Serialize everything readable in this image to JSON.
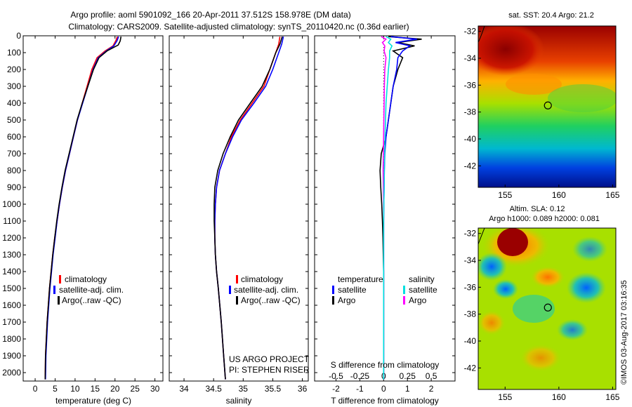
{
  "header": {
    "line1": "Argo profile: aoml 5901092_166 20-Apr-2011 37.512S 158.978E (DM data)",
    "line2": "Climatology: CARS2009. Satellite-adjusted climatology: synTS_20110420.nc (0.36d earlier)"
  },
  "colors": {
    "climatology": "#ff0000",
    "satellite": "#0000ff",
    "argo": "#000000",
    "argo_salinity_diff": "#ff00ff",
    "satellite_salinity_diff": "#00e0e0"
  },
  "chart_data": [
    {
      "type": "line",
      "name": "temperature-profile",
      "xlabel": "temperature (deg C)",
      "ylabel": "",
      "xlim": [
        -3,
        32
      ],
      "ylim": [
        2050,
        0
      ],
      "xticks": [
        "0",
        "5",
        "10",
        "15",
        "20",
        "25",
        "30"
      ],
      "xtick_values": [
        0,
        5,
        10,
        15,
        20,
        25,
        30
      ],
      "yticks": [
        "0",
        "100",
        "200",
        "300",
        "400",
        "500",
        "600",
        "700",
        "800",
        "900",
        "1000",
        "1100",
        "1200",
        "1300",
        "1400",
        "1500",
        "1600",
        "1700",
        "1800",
        "1900",
        "2000"
      ],
      "ytick_values": [
        0,
        100,
        200,
        300,
        400,
        500,
        600,
        700,
        800,
        900,
        1000,
        1100,
        1200,
        1300,
        1400,
        1500,
        1600,
        1700,
        1800,
        1900,
        2000
      ],
      "legend": [
        "climatology",
        "satellite-adj. clim.",
        "Argo(..raw -QC)"
      ],
      "series": [
        {
          "name": "climatology",
          "color": "#ff0000",
          "x": [
            20.6,
            20.2,
            19.5,
            17.5,
            15.5,
            14.2,
            13.0,
            11.8,
            10.6,
            9.6,
            8.6,
            7.6,
            6.8,
            6.1,
            5.5,
            4.9,
            4.4,
            3.6,
            3.0,
            2.6,
            2.5
          ],
          "y": [
            5,
            30,
            60,
            90,
            130,
            200,
            300,
            400,
            500,
            600,
            700,
            800,
            900,
            1000,
            1100,
            1200,
            1300,
            1500,
            1700,
            1900,
            2040
          ]
        },
        {
          "name": "satellite-adj. clim.",
          "color": "#0000ff",
          "x": [
            20.9,
            20.5,
            19.7,
            17.8,
            15.8,
            14.5,
            13.2,
            11.9,
            10.6,
            9.6,
            8.6,
            7.6,
            6.8,
            6.1,
            5.5,
            5.0,
            4.5,
            3.7,
            3.1,
            2.7,
            2.6
          ],
          "y": [
            5,
            30,
            60,
            90,
            130,
            200,
            300,
            400,
            500,
            600,
            700,
            800,
            900,
            1000,
            1100,
            1200,
            1300,
            1500,
            1700,
            1900,
            2040
          ]
        },
        {
          "name": "Argo(..raw -QC)",
          "color": "#000000",
          "x": [
            21.5,
            21.3,
            20.8,
            18.0,
            16.0,
            14.6,
            13.2,
            11.8,
            10.5,
            9.5,
            8.5,
            7.5,
            6.7,
            6.0,
            5.4,
            4.9,
            4.4,
            3.6,
            3.0,
            2.6,
            2.5
          ],
          "y": [
            5,
            30,
            55,
            90,
            130,
            200,
            300,
            400,
            500,
            600,
            700,
            800,
            900,
            1000,
            1100,
            1200,
            1300,
            1500,
            1700,
            1900,
            2040
          ]
        }
      ]
    },
    {
      "type": "line",
      "name": "salinity-profile",
      "xlabel": "salinity",
      "xlim": [
        33.75,
        36.1
      ],
      "ylim": [
        2050,
        0
      ],
      "xticks": [
        "34",
        "34.5",
        "35",
        "35.5",
        "36"
      ],
      "xtick_values": [
        34,
        34.5,
        35,
        35.5,
        36
      ],
      "legend": [
        "climatology",
        "satellite-adj. clim.",
        "Argo(..raw -QC)"
      ],
      "annotation": [
        "US ARGO PROJECT",
        "PI: STEPHEN RISER"
      ],
      "series": [
        {
          "name": "climatology",
          "color": "#ff0000",
          "x": [
            35.62,
            35.6,
            35.55,
            35.45,
            35.35,
            35.15,
            34.95,
            34.8,
            34.7,
            34.6,
            34.55,
            34.53,
            34.52,
            34.52,
            34.53,
            34.55,
            34.58,
            34.63,
            34.67,
            34.7
          ],
          "y": [
            5,
            50,
            100,
            200,
            300,
            400,
            500,
            600,
            700,
            800,
            900,
            1000,
            1100,
            1200,
            1300,
            1400,
            1500,
            1700,
            1900,
            2040
          ]
        },
        {
          "name": "satellite-adj. clim.",
          "color": "#0000ff",
          "x": [
            35.68,
            35.65,
            35.6,
            35.5,
            35.38,
            35.18,
            34.97,
            34.82,
            34.7,
            34.6,
            34.55,
            34.53,
            34.52,
            34.52,
            34.53,
            34.55,
            34.58,
            34.63,
            34.67,
            34.7
          ],
          "y": [
            5,
            50,
            100,
            200,
            300,
            400,
            500,
            600,
            700,
            800,
            900,
            1000,
            1100,
            1200,
            1300,
            1400,
            1500,
            1700,
            1900,
            2040
          ]
        },
        {
          "name": "Argo(..raw -QC)",
          "color": "#000000",
          "x": [
            35.66,
            35.62,
            35.55,
            35.45,
            35.32,
            35.12,
            34.92,
            34.78,
            34.66,
            34.57,
            34.52,
            34.51,
            34.51,
            34.52,
            34.53,
            34.55,
            34.58,
            34.63,
            34.67,
            34.7
          ],
          "y": [
            5,
            50,
            100,
            200,
            300,
            400,
            500,
            600,
            700,
            800,
            900,
            1000,
            1100,
            1200,
            1300,
            1400,
            1500,
            1700,
            1900,
            2040
          ]
        }
      ]
    },
    {
      "type": "line",
      "name": "difference-profile",
      "xlabel": "T difference from climatology",
      "xlabel_top": "S difference from climatology",
      "xlim": [
        -2.9,
        3.0
      ],
      "ylim": [
        2050,
        0
      ],
      "xticks": [
        "-2",
        "-1",
        "0",
        "1",
        "2"
      ],
      "xtick_values": [
        -2,
        -1,
        0,
        1,
        2
      ],
      "s_xticks": [
        "-0.5",
        "-0.25",
        "0",
        "0.25",
        "0.5"
      ],
      "s_xtick_values": [
        -0.5,
        -0.25,
        0,
        0.25,
        0.5
      ],
      "legend": {
        "temperature_title": "temperature",
        "salinity_title": "salinity",
        "satellite": "satellite",
        "argo": "Argo"
      },
      "series": [
        {
          "name": "temperature Argo",
          "color": "#000000",
          "x": [
            0.2,
            1.6,
            0.6,
            1.3,
            0.4,
            0.8,
            0.6,
            0.4,
            0.3,
            0.2,
            0.1,
            -0.1,
            -0.15,
            -0.12,
            -0.08,
            -0.05,
            -0.03,
            0,
            0,
            0
          ],
          "y": [
            5,
            20,
            40,
            60,
            90,
            130,
            200,
            300,
            400,
            500,
            600,
            700,
            800,
            900,
            1000,
            1100,
            1200,
            1400,
            1700,
            2040
          ]
        },
        {
          "name": "temperature satellite",
          "color": "#0000ff",
          "x": [
            0.3,
            1.4,
            0.5,
            1.1,
            0.8,
            0.6,
            0.55,
            0.4,
            0.3,
            0.2,
            0.1,
            0.05,
            0.03,
            0.02,
            0.01,
            0,
            0,
            0,
            0,
            0
          ],
          "y": [
            5,
            20,
            40,
            60,
            90,
            130,
            200,
            300,
            400,
            500,
            600,
            700,
            800,
            900,
            1000,
            1100,
            1200,
            1400,
            1700,
            2040
          ]
        },
        {
          "name": "salinity Argo",
          "color": "#ff00ff",
          "x": [
            -0.1,
            0.1,
            -0.05,
            0.05,
            0.02,
            0.1,
            0.05,
            0.03,
            0.02,
            0.01,
            0.0,
            -0.01,
            -0.02,
            -0.01,
            0,
            0,
            0,
            0,
            0,
            0
          ],
          "y": [
            5,
            20,
            40,
            60,
            90,
            130,
            200,
            300,
            400,
            500,
            600,
            700,
            800,
            900,
            1000,
            1100,
            1200,
            1400,
            1700,
            2040
          ]
        },
        {
          "name": "salinity satellite",
          "color": "#00e0e0",
          "x": [
            0.1,
            0.3,
            0.2,
            0.35,
            0.25,
            0.25,
            0.2,
            0.15,
            0.1,
            0.08,
            0.06,
            0.04,
            0.03,
            0.02,
            0.01,
            0,
            0,
            0,
            0,
            0
          ],
          "y": [
            5,
            20,
            40,
            60,
            90,
            130,
            200,
            300,
            400,
            500,
            600,
            700,
            800,
            900,
            1000,
            1100,
            1200,
            1400,
            1700,
            2040
          ]
        }
      ]
    },
    {
      "type": "heatmap",
      "name": "sst-map",
      "title": "sat. SST: 20.4  Argo: 21.2",
      "xlim": [
        152.5,
        165.3
      ],
      "ylim": [
        -43.6,
        -31.6
      ],
      "xticks": [
        "155",
        "160",
        "165"
      ],
      "xtick_values": [
        155,
        160,
        165
      ],
      "yticks": [
        "-32",
        "-34",
        "-36",
        "-38",
        "-40",
        "-42"
      ],
      "ytick_values": [
        -32,
        -34,
        -36,
        -38,
        -40,
        -42
      ],
      "marker": {
        "lon": 158.98,
        "lat": -37.51
      }
    },
    {
      "type": "heatmap",
      "name": "sla-map",
      "title": "Altim. SLA: 0.12",
      "subtitle": "Argo h1000: 0.089 h2000: 0.081",
      "xlim": [
        152.5,
        165.3
      ],
      "ylim": [
        -43.6,
        -31.6
      ],
      "xticks": [
        "155",
        "160",
        "165"
      ],
      "xtick_values": [
        155,
        160,
        165
      ],
      "yticks": [
        "-32",
        "-34",
        "-36",
        "-38",
        "-40",
        "-42"
      ],
      "ytick_values": [
        -32,
        -34,
        -36,
        -38,
        -40,
        -42
      ],
      "marker": {
        "lon": 158.98,
        "lat": -37.51
      }
    }
  ],
  "footer": {
    "credit": "©IMOS 03-Aug-2017 03:16:35"
  }
}
